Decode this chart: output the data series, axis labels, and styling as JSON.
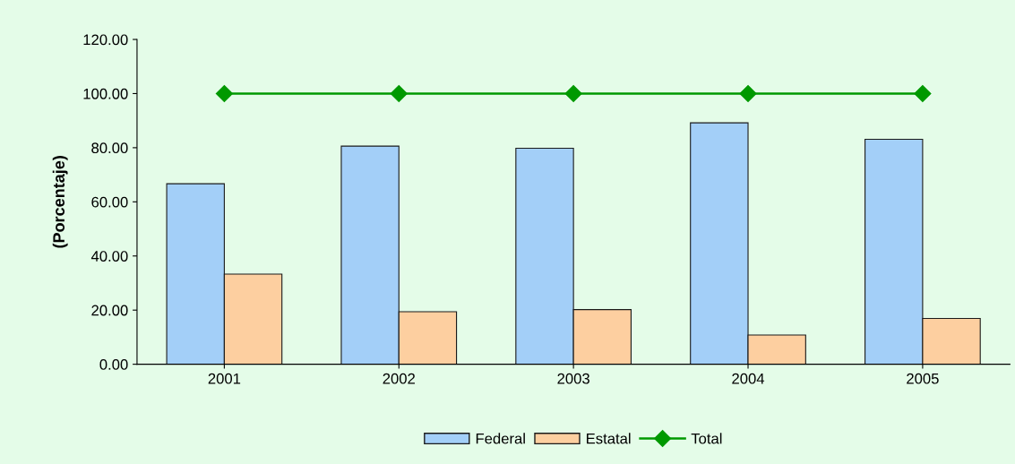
{
  "chart_data": {
    "type": "bar",
    "ylabel": "(Porcentaje)",
    "categories": [
      "2001",
      "2002",
      "2003",
      "2004",
      "2005"
    ],
    "series": [
      {
        "name": "Federal",
        "color": "#a3cff8",
        "values": [
          66.7,
          80.6,
          79.8,
          89.2,
          83.1
        ]
      },
      {
        "name": "Estatal",
        "color": "#fdcfa0",
        "values": [
          33.3,
          19.4,
          20.2,
          10.8,
          16.9
        ]
      },
      {
        "name": "Total",
        "type": "line",
        "color": "#009900",
        "values": [
          100,
          100,
          100,
          100,
          100
        ]
      }
    ],
    "ylim": [
      0,
      120
    ],
    "yticks": [
      {
        "value": 0,
        "label": "0.00"
      },
      {
        "value": 20,
        "label": "20.00"
      },
      {
        "value": 40,
        "label": "40.00"
      },
      {
        "value": 60,
        "label": "60.00"
      },
      {
        "value": 80,
        "label": "80.00"
      },
      {
        "value": 100,
        "label": "100.00"
      },
      {
        "value": 120,
        "label": "120.00"
      }
    ],
    "grid": false,
    "legend": "bottom",
    "marker": "diamond",
    "line_style": "solid"
  }
}
